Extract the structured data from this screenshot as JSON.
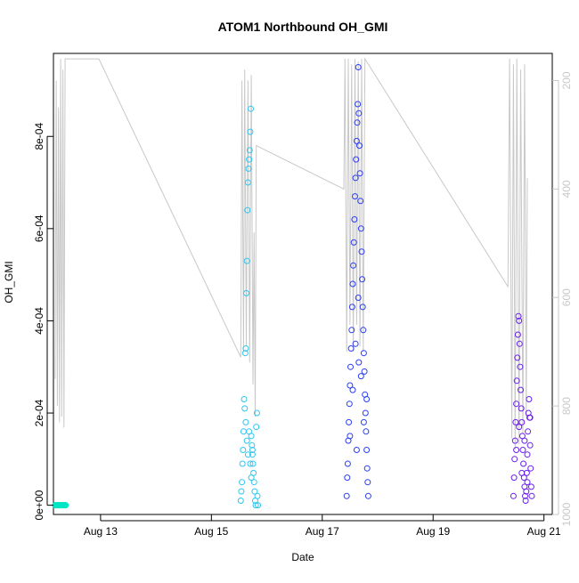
{
  "chart_data": {
    "type": "scatter",
    "title": "ATOM1 Northbound OH_GMI",
    "xlabel": "Date",
    "ylabel": "OH_GMI",
    "x_ticks": [
      "Aug 13",
      "Aug 15",
      "Aug 17",
      "Aug 19",
      "Aug 21"
    ],
    "y_ticks": [
      "0e+00",
      "2e-04",
      "4e-04",
      "6e-04",
      "8e-04"
    ],
    "y2_ticks": [
      "200",
      "400",
      "600",
      "800",
      "1000"
    ],
    "xlim_days": [
      12.15,
      21.15
    ],
    "ylim": [
      -2e-05,
      0.00098
    ],
    "y2lim_inverted": [
      1000,
      150
    ],
    "colors": {
      "flight1": "#00e5c4",
      "flight2": "#2ec6f0",
      "flight3": "#2b3df5",
      "flight4": "#6a1ff0",
      "pressure": "#c8c8c8"
    },
    "series": [
      {
        "color": "flight1",
        "points": [
          [
            12.18,
            0.0
          ],
          [
            12.19,
            0.0
          ],
          [
            12.2,
            0.0
          ],
          [
            12.21,
            0.0
          ],
          [
            12.22,
            0.0
          ],
          [
            12.23,
            0.0
          ],
          [
            12.24,
            0.0
          ],
          [
            12.25,
            0.0
          ],
          [
            12.26,
            0.0
          ],
          [
            12.27,
            0.0
          ],
          [
            12.28,
            0.0
          ],
          [
            12.29,
            0.0
          ],
          [
            12.3,
            0.0
          ],
          [
            12.31,
            0.0
          ],
          [
            12.32,
            0.0
          ],
          [
            12.33,
            0.0
          ],
          [
            12.34,
            0.0
          ],
          [
            12.35,
            0.0
          ],
          [
            12.36,
            0.0
          ],
          [
            12.37,
            0.0
          ]
        ]
      },
      {
        "color": "flight2",
        "points": [
          [
            15.53,
            1e-05
          ],
          [
            15.54,
            3e-05
          ],
          [
            15.55,
            5e-05
          ],
          [
            15.56,
            9e-05
          ],
          [
            15.57,
            0.00012
          ],
          [
            15.58,
            0.00016
          ],
          [
            15.59,
            0.00023
          ],
          [
            15.6,
            0.00021
          ],
          [
            15.61,
            0.00033
          ],
          [
            15.62,
            0.00034
          ],
          [
            15.63,
            0.00046
          ],
          [
            15.64,
            0.00053
          ],
          [
            15.65,
            0.00064
          ],
          [
            15.66,
            0.0007
          ],
          [
            15.67,
            0.00073
          ],
          [
            15.68,
            0.00075
          ],
          [
            15.69,
            0.00077
          ],
          [
            15.7,
            0.00081
          ],
          [
            15.71,
            0.00086
          ],
          [
            15.72,
            0.00015
          ],
          [
            15.73,
            0.00013
          ],
          [
            15.74,
            0.00011
          ],
          [
            15.75,
            9e-05
          ],
          [
            15.76,
            7e-05
          ],
          [
            15.77,
            5e-05
          ],
          [
            15.78,
            3e-05
          ],
          [
            15.79,
            1e-05
          ],
          [
            15.8,
            0.0
          ],
          [
            15.81,
            0.00017
          ],
          [
            15.82,
            0.0002
          ],
          [
            15.83,
            2e-05
          ],
          [
            15.84,
            0.0
          ],
          [
            15.62,
            0.00018
          ],
          [
            15.64,
            0.00014
          ],
          [
            15.66,
            0.00011
          ],
          [
            15.68,
            0.00016
          ],
          [
            15.7,
            9e-05
          ],
          [
            15.72,
            6e-05
          ],
          [
            15.74,
            0.00012
          ]
        ]
      },
      {
        "color": "flight3",
        "points": [
          [
            17.44,
            2e-05
          ],
          [
            17.45,
            6e-05
          ],
          [
            17.46,
            9e-05
          ],
          [
            17.47,
            0.00014
          ],
          [
            17.48,
            0.00018
          ],
          [
            17.49,
            0.00022
          ],
          [
            17.5,
            0.00026
          ],
          [
            17.51,
            0.0003
          ],
          [
            17.52,
            0.00034
          ],
          [
            17.53,
            0.00038
          ],
          [
            17.54,
            0.00043
          ],
          [
            17.55,
            0.00048
          ],
          [
            17.56,
            0.00052
          ],
          [
            17.57,
            0.00057
          ],
          [
            17.58,
            0.00062
          ],
          [
            17.59,
            0.00067
          ],
          [
            17.6,
            0.00071
          ],
          [
            17.61,
            0.00075
          ],
          [
            17.62,
            0.00079
          ],
          [
            17.63,
            0.00083
          ],
          [
            17.64,
            0.00087
          ],
          [
            17.65,
            0.00095
          ],
          [
            17.66,
            0.00085
          ],
          [
            17.67,
            0.00078
          ],
          [
            17.68,
            0.00072
          ],
          [
            17.69,
            0.00066
          ],
          [
            17.7,
            0.0006
          ],
          [
            17.71,
            0.00055
          ],
          [
            17.72,
            0.00049
          ],
          [
            17.73,
            0.00043
          ],
          [
            17.74,
            0.00038
          ],
          [
            17.75,
            0.00033
          ],
          [
            17.76,
            0.00029
          ],
          [
            17.77,
            0.00024
          ],
          [
            17.78,
            0.0002
          ],
          [
            17.79,
            0.00016
          ],
          [
            17.8,
            0.00012
          ],
          [
            17.81,
            8e-05
          ],
          [
            17.82,
            5e-05
          ],
          [
            17.83,
            2e-05
          ],
          [
            17.5,
            0.00015
          ],
          [
            17.55,
            0.00025
          ],
          [
            17.6,
            0.00035
          ],
          [
            17.65,
            0.00045
          ],
          [
            17.7,
            0.00028
          ],
          [
            17.75,
            0.00018
          ],
          [
            17.8,
            0.00023
          ],
          [
            17.62,
            0.00012
          ],
          [
            17.66,
            0.00031
          ]
        ]
      },
      {
        "color": "flight4",
        "points": [
          [
            20.45,
            2e-05
          ],
          [
            20.46,
            6e-05
          ],
          [
            20.47,
            0.0001
          ],
          [
            20.48,
            0.00014
          ],
          [
            20.49,
            0.00018
          ],
          [
            20.5,
            0.00022
          ],
          [
            20.51,
            0.00027
          ],
          [
            20.52,
            0.00032
          ],
          [
            20.53,
            0.00037
          ],
          [
            20.54,
            0.00041
          ],
          [
            20.55,
            0.0004
          ],
          [
            20.56,
            0.00035
          ],
          [
            20.57,
            0.0003
          ],
          [
            20.58,
            0.00025
          ],
          [
            20.59,
            0.00021
          ],
          [
            20.6,
            0.00018
          ],
          [
            20.61,
            0.00015
          ],
          [
            20.62,
            0.00012
          ],
          [
            20.63,
            9e-05
          ],
          [
            20.64,
            6e-05
          ],
          [
            20.65,
            4e-05
          ],
          [
            20.66,
            2e-05
          ],
          [
            20.67,
            1e-05
          ],
          [
            20.68,
            3e-05
          ],
          [
            20.69,
            7e-05
          ],
          [
            20.7,
            0.00011
          ],
          [
            20.71,
            0.00016
          ],
          [
            20.72,
            0.0002
          ],
          [
            20.73,
            0.00023
          ],
          [
            20.74,
            0.00019
          ],
          [
            20.75,
            0.00013
          ],
          [
            20.76,
            8e-05
          ],
          [
            20.77,
            4e-05
          ],
          [
            20.78,
            2e-05
          ],
          [
            20.5,
            0.00012
          ],
          [
            20.55,
            0.00017
          ],
          [
            20.6,
            7e-05
          ],
          [
            20.65,
            0.00014
          ],
          [
            20.7,
            5e-05
          ],
          [
            20.75,
            0.00019
          ]
        ]
      }
    ],
    "pressure": [
      [
        12.18,
        750
      ],
      [
        12.2,
        200
      ],
      [
        12.22,
        800
      ],
      [
        12.24,
        250
      ],
      [
        12.26,
        830
      ],
      [
        12.28,
        160
      ],
      [
        12.3,
        820
      ],
      [
        12.32,
        180
      ],
      [
        12.34,
        840
      ],
      [
        12.36,
        160
      ],
      [
        12.97,
        160
      ],
      [
        15.53,
        710
      ],
      [
        15.55,
        200
      ],
      [
        15.58,
        700
      ],
      [
        15.6,
        180
      ],
      [
        15.63,
        690
      ],
      [
        15.66,
        200
      ],
      [
        15.69,
        720
      ],
      [
        15.72,
        190
      ],
      [
        15.75,
        760
      ],
      [
        15.77,
        480
      ],
      [
        15.79,
        820
      ],
      [
        15.81,
        320
      ],
      [
        17.39,
        400
      ],
      [
        17.41,
        160
      ],
      [
        17.44,
        700
      ],
      [
        17.47,
        160
      ],
      [
        17.5,
        650
      ],
      [
        17.53,
        170
      ],
      [
        17.56,
        700
      ],
      [
        17.59,
        160
      ],
      [
        17.62,
        650
      ],
      [
        17.65,
        165
      ],
      [
        17.68,
        690
      ],
      [
        17.71,
        160
      ],
      [
        17.74,
        700
      ],
      [
        17.77,
        160
      ],
      [
        20.35,
        580
      ],
      [
        20.38,
        160
      ],
      [
        20.42,
        860
      ],
      [
        20.45,
        170
      ],
      [
        20.48,
        880
      ],
      [
        20.51,
        160
      ],
      [
        20.55,
        870
      ],
      [
        20.58,
        180
      ],
      [
        20.62,
        850
      ],
      [
        20.65,
        170
      ],
      [
        20.68,
        820
      ],
      [
        20.7,
        380
      ]
    ]
  }
}
